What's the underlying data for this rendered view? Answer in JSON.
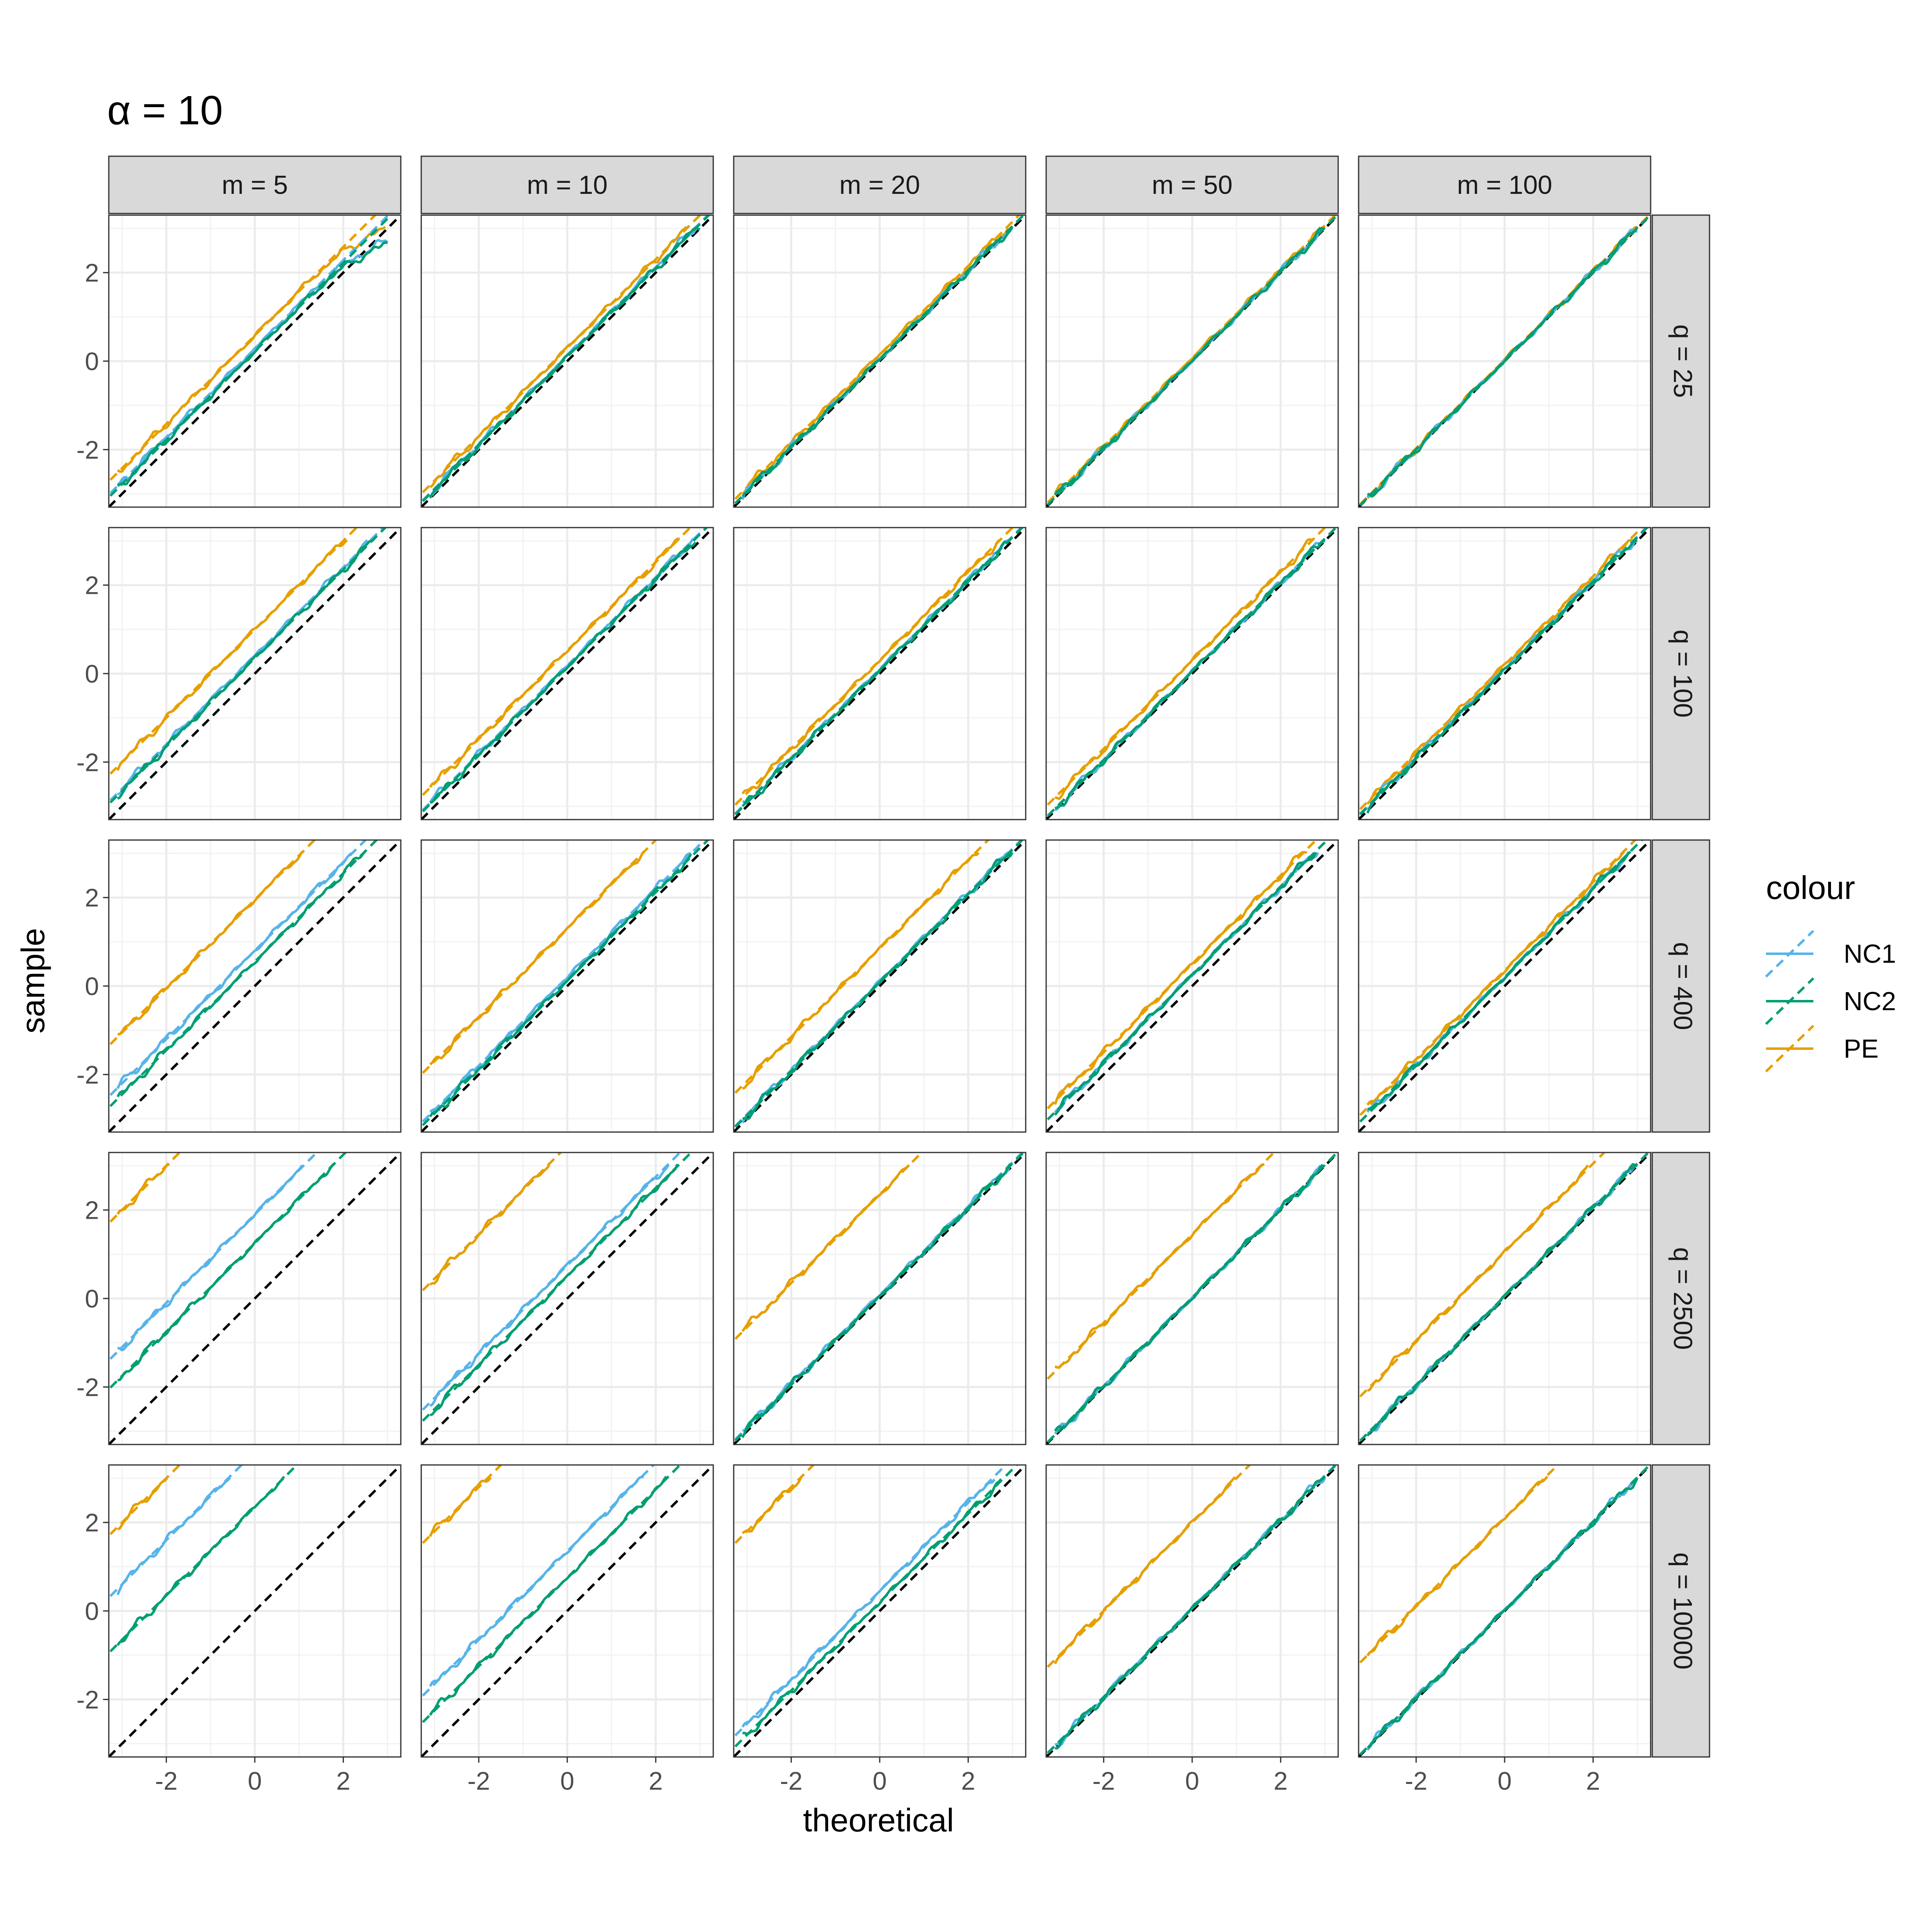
{
  "chart_data": {
    "type": "line",
    "title": "α = 10",
    "xlabel": "theoretical",
    "ylabel": "sample",
    "xlim": [
      -3.3,
      3.3
    ],
    "ylim": [
      -3.3,
      3.3
    ],
    "x_ticks": [
      -2,
      0,
      2
    ],
    "y_ticks": [
      -2,
      0,
      2
    ],
    "x_tick_labels": [
      "-2",
      "0",
      "2"
    ],
    "y_tick_labels": [
      "-2",
      "0",
      "2"
    ],
    "grid": true,
    "legend_position": "right",
    "legend": {
      "title": "colour",
      "entries": [
        {
          "label": "NC1",
          "color": "#56B4E9"
        },
        {
          "label": "NC2",
          "color": "#009E73"
        },
        {
          "label": "PE",
          "color": "#E69F00"
        }
      ]
    },
    "reference_line": {
      "slope": 1,
      "intercept": 0,
      "style": "dashed",
      "color": "#000000"
    },
    "column_facets": [
      "m = 5",
      "m = 10",
      "m = 20",
      "m = 50",
      "m = 100"
    ],
    "row_facets": [
      "q = 25",
      "q = 100",
      "q = 400",
      "q = 2500",
      "q = 10000"
    ],
    "x_range": [
      -3.1,
      3.0
    ],
    "series_offsets_note_free": true,
    "panels": [
      [
        {
          "NC1": 0.28,
          "NC2": 0.22,
          "PE": 0.58,
          "curve_top": true
        },
        {
          "NC1": 0.12,
          "NC2": 0.1,
          "PE": 0.3
        },
        {
          "NC1": 0.05,
          "NC2": 0.05,
          "PE": 0.15
        },
        {
          "NC1": 0.02,
          "NC2": 0.02,
          "PE": 0.07
        },
        {
          "NC1": 0.01,
          "NC2": 0.01,
          "PE": 0.03
        }
      ],
      [
        {
          "NC1": 0.4,
          "NC2": 0.35,
          "PE": 1.0
        },
        {
          "NC1": 0.18,
          "NC2": 0.15,
          "PE": 0.52
        },
        {
          "NC1": 0.1,
          "NC2": 0.08,
          "PE": 0.3
        },
        {
          "NC1": 0.05,
          "NC2": 0.05,
          "PE": 0.3
        },
        {
          "NC1": 0.1,
          "NC2": 0.08,
          "PE": 0.2
        }
      ],
      [
        {
          "NC1": 0.8,
          "NC2": 0.55,
          "PE": 1.95
        },
        {
          "NC1": 0.2,
          "NC2": 0.12,
          "PE": 1.3
        },
        {
          "NC1": 0.1,
          "NC2": 0.08,
          "PE": 0.85
        },
        {
          "NC1": 0.25,
          "NC2": 0.25,
          "PE": 0.5
        },
        {
          "NC1": 0.2,
          "NC2": 0.2,
          "PE": 0.35
        }
      ],
      [
        {
          "NC1": 1.9,
          "NC2": 1.25,
          "PE": 5.0
        },
        {
          "NC1": 0.75,
          "NC2": 0.5,
          "PE": 3.45
        },
        {
          "NC1": 0.08,
          "NC2": 0.05,
          "PE": 2.35
        },
        {
          "NC1": 0.02,
          "NC2": 0.02,
          "PE": 1.45
        },
        {
          "NC1": 0.05,
          "NC2": 0.05,
          "PE": 1.05
        }
      ],
      [
        {
          "NC1": 3.6,
          "NC2": 2.35,
          "PE": 5.0
        },
        {
          "NC1": 1.35,
          "NC2": 0.75,
          "PE": 4.8
        },
        {
          "NC1": 0.45,
          "NC2": 0.2,
          "PE": 4.8
        },
        {
          "NC1": 0.06,
          "NC2": 0.05,
          "PE": 2.0
        },
        {
          "NC1": 0.02,
          "NC2": 0.02,
          "PE": 2.1
        }
      ]
    ]
  }
}
